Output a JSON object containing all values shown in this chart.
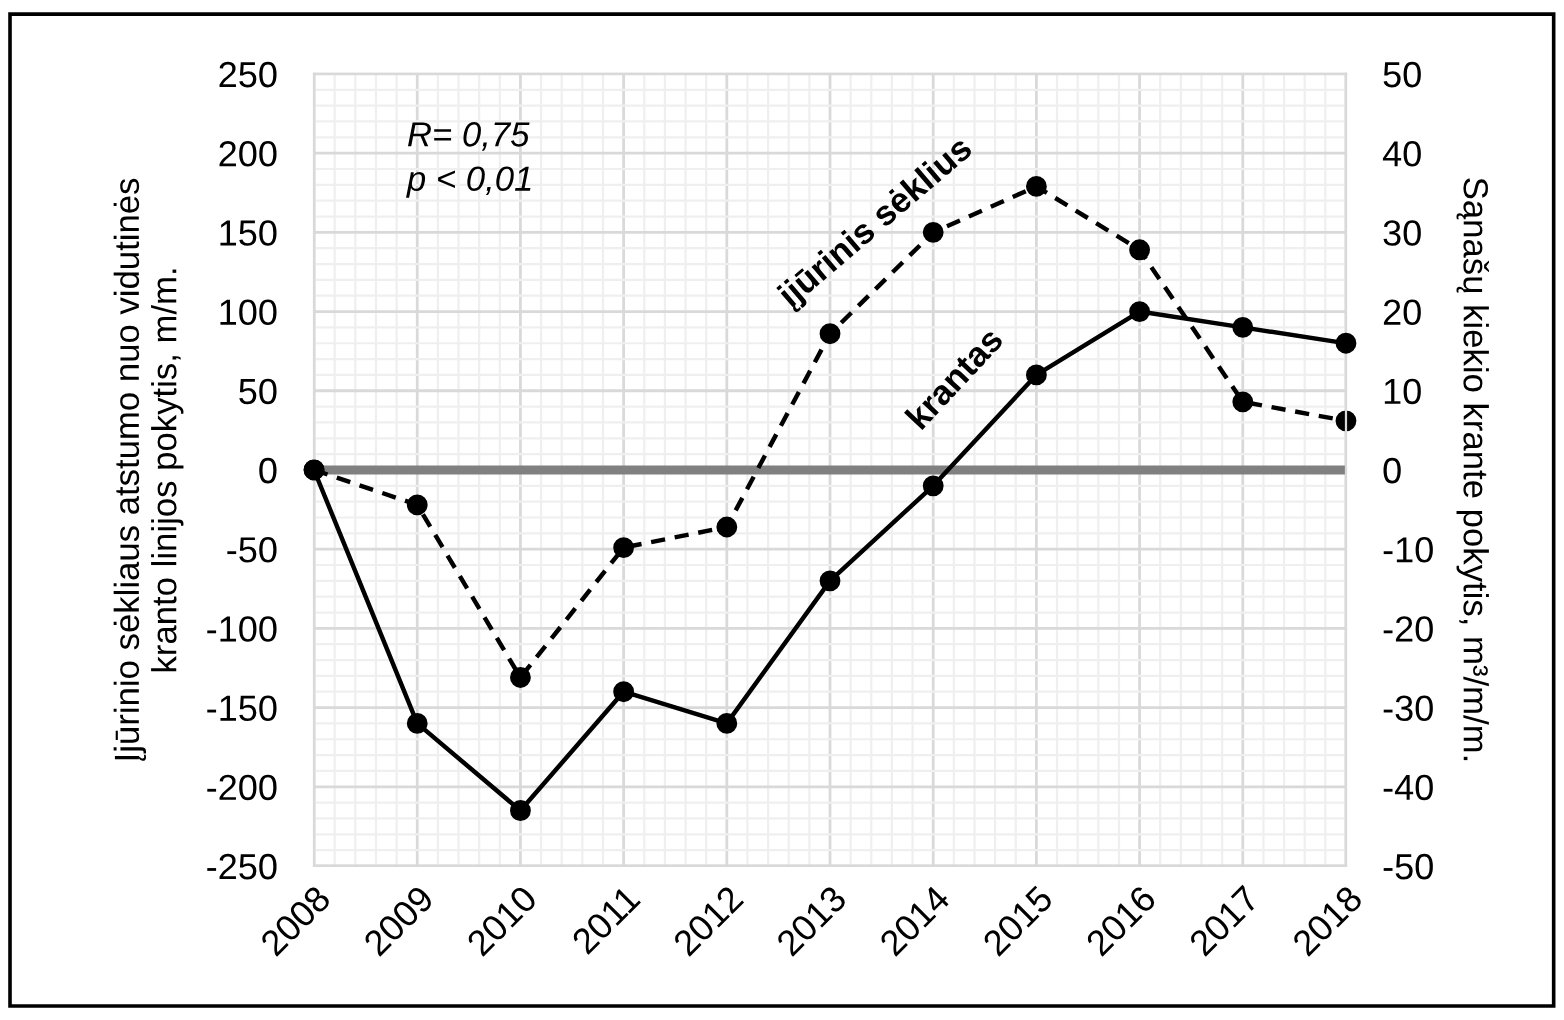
{
  "chart_data": {
    "type": "line",
    "categories": [
      "2008",
      "2009",
      "2010",
      "2011",
      "2012",
      "2013",
      "2014",
      "2015",
      "2016",
      "2017",
      "2018"
    ],
    "series": [
      {
        "name": "įjūrinis sėklius",
        "color": "#000000",
        "line_style": "dashed",
        "values": [
          0,
          -22,
          -131,
          -49,
          -36,
          86,
          150,
          179,
          139,
          43,
          31
        ]
      },
      {
        "name": "krantas",
        "color": "#000000",
        "line_style": "solid",
        "axis": "y2",
        "values": [
          0,
          -32,
          -43,
          -28,
          -32,
          -14,
          -2,
          12,
          20,
          18,
          16
        ]
      }
    ],
    "ylabel": "Įjūrinio sėkliaus atstumo nuo vidutinės\nkranto linijos pokytis, m/m.",
    "y2label": "Sąnašų kiekio krante pokytis, m³/m/m.",
    "ylim": [
      -250,
      250
    ],
    "yticks": [
      -250,
      -200,
      -150,
      -100,
      -50,
      0,
      50,
      100,
      150,
      200,
      250
    ],
    "y2lim": [
      -50,
      50
    ],
    "y2ticks": [
      -50,
      -40,
      -30,
      -20,
      -10,
      0,
      10,
      20,
      30,
      40,
      50
    ],
    "ref_lines": [
      {
        "axis": "y",
        "value": 0,
        "color": "#808080"
      }
    ],
    "annotations": [
      "R= 0,75",
      "p < 0,01"
    ],
    "grid": true,
    "marker": "circle"
  }
}
